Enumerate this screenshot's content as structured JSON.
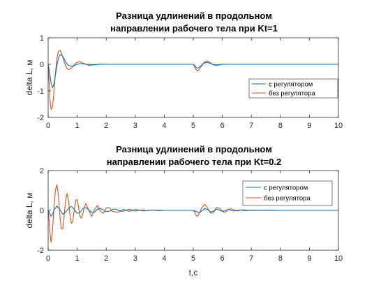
{
  "chart_data": [
    {
      "type": "line",
      "title": [
        "Разница удлинений в продольном",
        "направлении рабочего тела при Kt=1"
      ],
      "xlabel": "",
      "ylabel": "delta L, м",
      "xlim": [
        0,
        10
      ],
      "ylim": [
        -2,
        1
      ],
      "xticks": [
        0,
        1,
        2,
        3,
        4,
        5,
        6,
        7,
        8,
        9,
        10
      ],
      "yticks": [
        -2,
        -1,
        0,
        1
      ],
      "grid": false,
      "legend_position": "right",
      "series": [
        {
          "name": "с регулятором",
          "color": "#0072BD",
          "x": [
            0,
            0.05,
            0.1,
            0.15,
            0.2,
            0.25,
            0.3,
            0.35,
            0.4,
            0.45,
            0.5,
            0.55,
            0.6,
            0.65,
            0.7,
            0.8,
            0.9,
            1.0,
            1.1,
            1.2,
            1.3,
            1.5,
            1.8,
            2.2,
            5.0,
            5.05,
            5.1,
            5.15,
            5.2,
            5.3,
            5.4,
            5.5,
            5.6,
            5.7,
            5.8,
            6.0,
            6.5,
            10
          ],
          "y": [
            0,
            -0.3,
            -0.7,
            -0.88,
            -0.75,
            -0.4,
            -0.05,
            0.22,
            0.35,
            0.36,
            0.3,
            0.2,
            0.1,
            0.02,
            -0.04,
            -0.08,
            -0.05,
            0.0,
            0.03,
            0.02,
            0.0,
            -0.01,
            0.0,
            0.0,
            0,
            -0.05,
            -0.12,
            -0.15,
            -0.12,
            -0.02,
            0.06,
            0.07,
            0.03,
            -0.01,
            -0.02,
            0.0,
            0.0,
            0
          ]
        },
        {
          "name": "без регулятора",
          "color": "#D95319",
          "x": [
            0,
            0.03,
            0.06,
            0.1,
            0.15,
            0.2,
            0.25,
            0.3,
            0.35,
            0.4,
            0.45,
            0.5,
            0.55,
            0.6,
            0.65,
            0.7,
            0.8,
            0.9,
            1.0,
            1.1,
            1.2,
            1.3,
            1.4,
            1.6,
            1.8,
            2.0,
            2.5,
            5.0,
            5.05,
            5.1,
            5.15,
            5.2,
            5.3,
            5.4,
            5.5,
            5.6,
            5.7,
            5.8,
            5.9,
            6.0,
            6.2,
            6.6,
            10
          ],
          "y": [
            0,
            -0.6,
            -1.3,
            -1.7,
            -1.6,
            -1.05,
            -0.35,
            0.2,
            0.48,
            0.53,
            0.45,
            0.28,
            0.1,
            -0.05,
            -0.15,
            -0.2,
            -0.15,
            -0.02,
            0.08,
            0.1,
            0.05,
            0.0,
            -0.04,
            -0.02,
            0.01,
            0.0,
            0.0,
            0,
            -0.1,
            -0.2,
            -0.25,
            -0.2,
            -0.04,
            0.1,
            0.12,
            0.05,
            -0.02,
            -0.05,
            -0.02,
            0.01,
            0.0,
            0.0,
            0
          ]
        }
      ]
    },
    {
      "type": "line",
      "title": [
        "Разница удлинений в продольном",
        "направлении рабочего тела при Kt=0.2"
      ],
      "xlabel": "t,c",
      "ylabel": "delta L, м",
      "xlim": [
        0,
        10
      ],
      "ylim": [
        -2,
        2
      ],
      "xticks": [
        0,
        1,
        2,
        3,
        4,
        5,
        6,
        7,
        8,
        9,
        10
      ],
      "yticks": [
        -2,
        0,
        2
      ],
      "grid": false,
      "legend_position": "top-right",
      "series": [
        {
          "name": "с регулятором",
          "color": "#0072BD",
          "x": [
            0,
            0.05,
            0.1,
            0.15,
            0.2,
            0.3,
            0.4,
            0.5,
            0.6,
            0.7,
            0.8,
            0.9,
            1.0,
            1.1,
            1.2,
            1.3,
            1.4,
            1.5,
            1.6,
            1.7,
            1.8,
            1.9,
            2.0,
            2.1,
            2.2,
            2.3,
            2.4,
            2.5,
            2.6,
            2.7,
            2.8,
            2.9,
            3.0,
            3.2,
            3.4,
            3.6,
            3.8,
            4.0,
            4.5,
            5.0,
            5.1,
            5.2,
            5.3,
            5.4,
            5.5,
            5.6,
            5.7,
            5.8,
            5.9,
            6.0,
            6.1,
            6.2,
            6.3,
            6.4,
            6.5,
            6.6,
            6.8,
            7.0,
            7.3,
            7.6,
            8.0,
            10
          ],
          "y": [
            0,
            -0.15,
            -0.3,
            -0.2,
            0.0,
            0.22,
            0.05,
            -0.2,
            -0.1,
            0.1,
            0.2,
            0.05,
            -0.15,
            -0.1,
            0.1,
            0.15,
            0.02,
            -0.1,
            -0.08,
            0.06,
            0.1,
            0.02,
            -0.06,
            -0.05,
            0.04,
            0.07,
            0.02,
            -0.04,
            -0.04,
            0.02,
            0.05,
            0.01,
            -0.03,
            0.02,
            -0.02,
            0.02,
            -0.01,
            0.0,
            0.0,
            0,
            -0.05,
            -0.12,
            -0.02,
            0.1,
            0.04,
            -0.08,
            -0.03,
            0.07,
            0.02,
            -0.05,
            -0.01,
            0.04,
            0.01,
            -0.03,
            0.0,
            0.02,
            -0.01,
            0.01,
            0.0,
            0.01,
            0.0,
            0
          ]
        },
        {
          "name": "без регулятора",
          "color": "#D95319",
          "x": [
            0,
            0.03,
            0.06,
            0.1,
            0.15,
            0.2,
            0.25,
            0.3,
            0.35,
            0.4,
            0.45,
            0.5,
            0.55,
            0.6,
            0.65,
            0.7,
            0.75,
            0.8,
            0.85,
            0.9,
            0.95,
            1.0,
            1.05,
            1.1,
            1.15,
            1.2,
            1.25,
            1.3,
            1.4,
            1.5,
            1.6,
            1.7,
            1.8,
            1.9,
            2.0,
            2.1,
            2.2,
            2.4,
            2.6,
            2.8,
            3.0,
            3.3,
            3.6,
            4.0,
            4.5,
            5.0,
            5.05,
            5.1,
            5.15,
            5.2,
            5.3,
            5.4,
            5.5,
            5.6,
            5.7,
            5.8,
            5.9,
            6.0,
            6.1,
            6.2,
            6.3,
            6.5,
            6.7,
            7.0,
            7.4,
            8.0,
            10
          ],
          "y": [
            0,
            -0.5,
            -1.1,
            -1.6,
            -1.0,
            0.1,
            1.0,
            1.3,
            0.8,
            -0.2,
            -0.9,
            -0.95,
            -0.3,
            0.5,
            0.85,
            0.5,
            -0.2,
            -0.65,
            -0.55,
            0.0,
            0.5,
            0.55,
            0.15,
            -0.3,
            -0.4,
            -0.15,
            0.2,
            0.35,
            0.0,
            -0.3,
            0.05,
            0.25,
            -0.05,
            -0.15,
            0.12,
            0.15,
            -0.05,
            -0.1,
            0.06,
            -0.05,
            0.05,
            -0.03,
            0.02,
            0.0,
            0.0,
            0,
            -0.1,
            -0.25,
            -0.3,
            -0.15,
            0.15,
            0.3,
            0.1,
            -0.15,
            -0.1,
            0.15,
            0.12,
            -0.05,
            -0.1,
            0.04,
            0.08,
            -0.03,
            0.03,
            0.0,
            0.01,
            0.0,
            0
          ]
        }
      ]
    }
  ]
}
